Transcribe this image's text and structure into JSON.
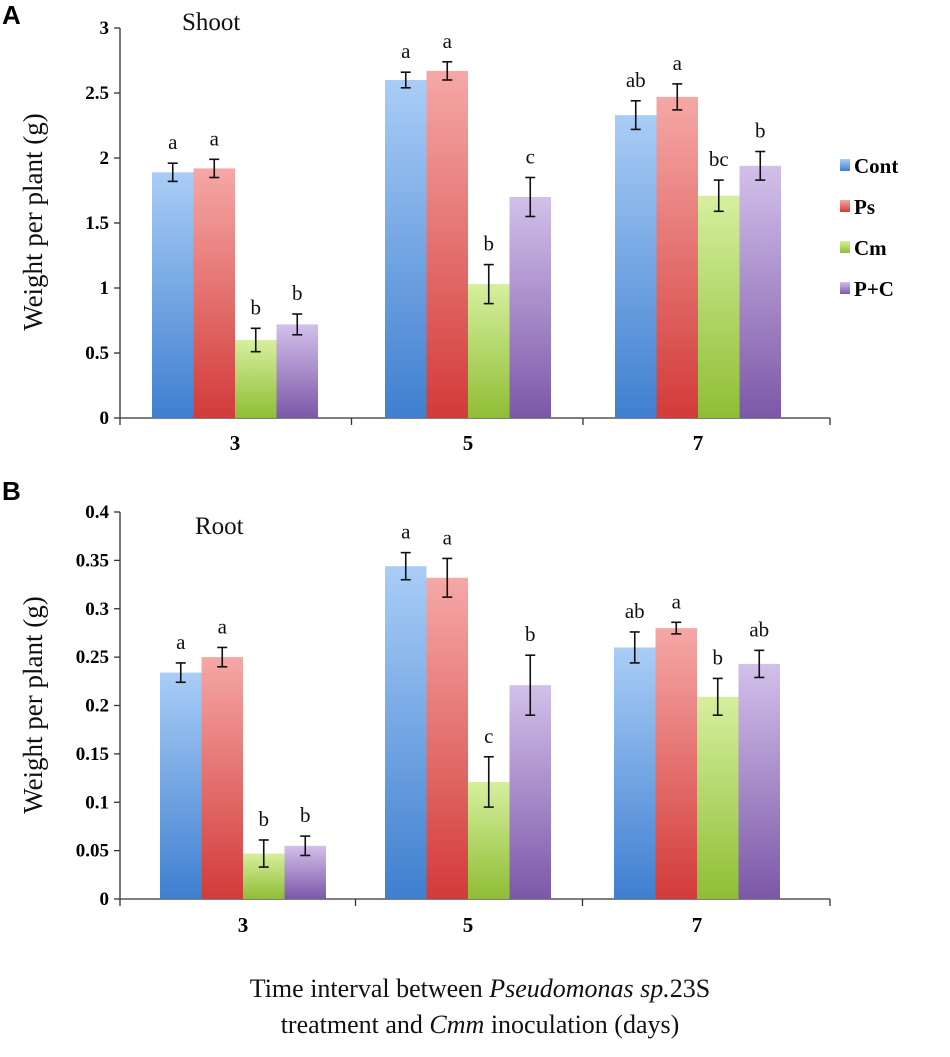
{
  "figure": {
    "x_caption_parts": [
      "Time interval between ",
      "Pseudomonas sp.",
      "23S",
      "treatment and ",
      "Cmm",
      " inoculation (days)"
    ]
  },
  "legend": {
    "entries": [
      "Cont",
      "Ps",
      "Cm",
      "P+C"
    ],
    "position": "right",
    "colors": {
      "top": [
        "#a9cdf6",
        "#f5a8a6",
        "#d6ef9e",
        "#d2c0ea"
      ],
      "bottom": [
        "#3f7fd0",
        "#d23b39",
        "#8fbe35",
        "#7c58a8"
      ]
    }
  },
  "chart_data": [
    {
      "panel_label": "A",
      "type": "bar",
      "title": "Shoot",
      "xlabel": "",
      "ylabel": "Weight per plant (g)",
      "categories": [
        "3",
        "5",
        "7"
      ],
      "ylim": [
        0,
        3
      ],
      "yticks": [
        "0",
        "0.5",
        "1",
        "1.5",
        "2",
        "2.5",
        "3"
      ],
      "ytick_values": [
        0,
        0.5,
        1,
        1.5,
        2,
        2.5,
        3
      ],
      "series": [
        {
          "name": "Cont",
          "values": [
            1.89,
            2.6,
            2.33
          ],
          "errors": [
            0.07,
            0.06,
            0.11
          ],
          "letters": [
            "a",
            "a",
            "ab"
          ]
        },
        {
          "name": "Ps",
          "values": [
            1.92,
            2.67,
            2.47
          ],
          "errors": [
            0.07,
            0.07,
            0.1
          ],
          "letters": [
            "a",
            "a",
            "a"
          ]
        },
        {
          "name": "Cm",
          "values": [
            0.6,
            1.03,
            1.71
          ],
          "errors": [
            0.09,
            0.15,
            0.12
          ],
          "letters": [
            "b",
            "b",
            "bc"
          ]
        },
        {
          "name": "P+C",
          "values": [
            0.72,
            1.7,
            1.94
          ],
          "errors": [
            0.08,
            0.15,
            0.11
          ],
          "letters": [
            "b",
            "c",
            "b"
          ]
        }
      ]
    },
    {
      "panel_label": "B",
      "type": "bar",
      "title": "Root",
      "xlabel": "",
      "ylabel": "Weight per plant (g)",
      "categories": [
        "3",
        "5",
        "7"
      ],
      "ylim": [
        0,
        0.4
      ],
      "yticks": [
        "0",
        "0.05",
        "0.1",
        "0.15",
        "0.2",
        "0.25",
        "0.3",
        "0.35",
        "0.4"
      ],
      "ytick_values": [
        0,
        0.05,
        0.1,
        0.15,
        0.2,
        0.25,
        0.3,
        0.35,
        0.4
      ],
      "series": [
        {
          "name": "Cont",
          "values": [
            0.234,
            0.344,
            0.26
          ],
          "errors": [
            0.01,
            0.014,
            0.016
          ],
          "letters": [
            "a",
            "a",
            "ab"
          ]
        },
        {
          "name": "Ps",
          "values": [
            0.25,
            0.332,
            0.28
          ],
          "errors": [
            0.01,
            0.02,
            0.006
          ],
          "letters": [
            "a",
            "a",
            "a"
          ]
        },
        {
          "name": "Cm",
          "values": [
            0.047,
            0.121,
            0.209
          ],
          "errors": [
            0.014,
            0.026,
            0.019
          ],
          "letters": [
            "b",
            "c",
            "b"
          ]
        },
        {
          "name": "P+C",
          "values": [
            0.055,
            0.221,
            0.243
          ],
          "errors": [
            0.01,
            0.031,
            0.014
          ],
          "letters": [
            "b",
            "b",
            "ab"
          ]
        }
      ]
    }
  ]
}
